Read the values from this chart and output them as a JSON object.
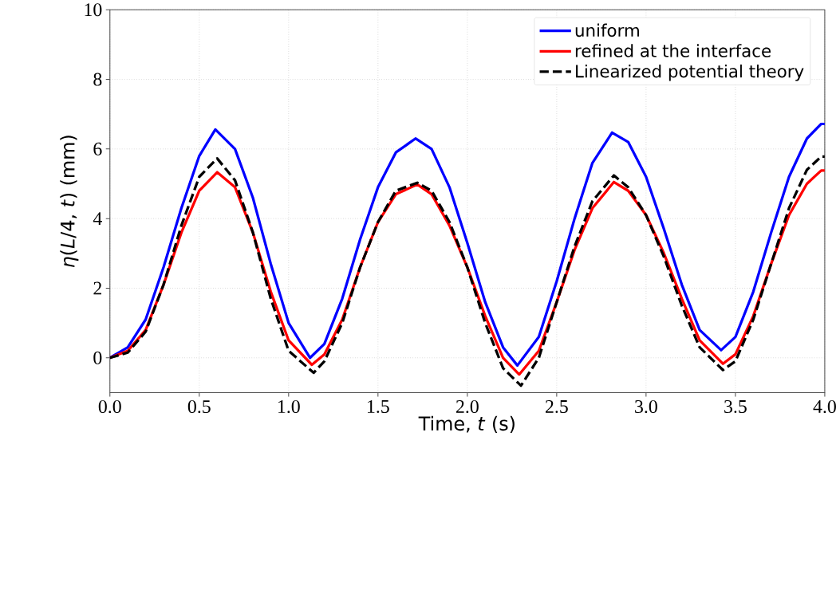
{
  "chart_data": {
    "type": "line",
    "xlabel": "Time, *t* (s)",
    "ylabel": "*η*(*L*/4, *t*) (mm)",
    "xlim": [
      0,
      4
    ],
    "ylim": [
      -1,
      10
    ],
    "xticks": [
      {
        "value": 0,
        "label": "0.0"
      },
      {
        "value": 0.5,
        "label": "0.5"
      },
      {
        "value": 1,
        "label": "1.0"
      },
      {
        "value": 1.5,
        "label": "1.5"
      },
      {
        "value": 2,
        "label": "2.0"
      },
      {
        "value": 2.5,
        "label": "2.5"
      },
      {
        "value": 3,
        "label": "3.0"
      },
      {
        "value": 3.5,
        "label": "3.5"
      },
      {
        "value": 4,
        "label": "4.0"
      }
    ],
    "yticks": [
      0,
      2,
      4,
      6,
      8,
      10
    ],
    "grid": true,
    "legend": "top right",
    "series": [
      {
        "name": "uniform",
        "color": "#0000ff",
        "line_style": "solid",
        "x": [
          0,
          0.1,
          0.2,
          0.3,
          0.4,
          0.5,
          0.59,
          0.7,
          0.8,
          0.9,
          1.0,
          1.12,
          1.2,
          1.3,
          1.4,
          1.5,
          1.6,
          1.71,
          1.8,
          1.9,
          2.0,
          2.1,
          2.2,
          2.28,
          2.4,
          2.5,
          2.6,
          2.7,
          2.81,
          2.9,
          3.0,
          3.1,
          3.2,
          3.3,
          3.42,
          3.5,
          3.6,
          3.7,
          3.8,
          3.9,
          3.98,
          4.0
        ],
        "values": [
          0,
          0.3,
          1.1,
          2.6,
          4.3,
          5.8,
          6.56,
          6.0,
          4.6,
          2.7,
          1.0,
          0.0,
          0.4,
          1.7,
          3.4,
          4.9,
          5.9,
          6.3,
          6.0,
          4.9,
          3.3,
          1.6,
          0.3,
          -0.22,
          0.6,
          2.2,
          4.0,
          5.6,
          6.47,
          6.2,
          5.2,
          3.7,
          2.1,
          0.8,
          0.22,
          0.6,
          1.9,
          3.6,
          5.2,
          6.3,
          6.72,
          6.72
        ]
      },
      {
        "name": "refined at the interface",
        "color": "#ff0000",
        "line_style": "solid",
        "x": [
          0,
          0.1,
          0.2,
          0.3,
          0.4,
          0.5,
          0.6,
          0.7,
          0.8,
          0.9,
          1.0,
          1.13,
          1.2,
          1.3,
          1.4,
          1.5,
          1.6,
          1.72,
          1.8,
          1.9,
          2.0,
          2.1,
          2.2,
          2.29,
          2.4,
          2.5,
          2.6,
          2.7,
          2.82,
          2.9,
          3.0,
          3.1,
          3.2,
          3.3,
          3.43,
          3.5,
          3.6,
          3.7,
          3.8,
          3.9,
          3.98,
          4.0
        ],
        "values": [
          0,
          0.2,
          0.8,
          2.1,
          3.6,
          4.8,
          5.33,
          4.9,
          3.6,
          1.9,
          0.5,
          -0.2,
          0.1,
          1.1,
          2.6,
          3.9,
          4.7,
          4.98,
          4.7,
          3.8,
          2.6,
          1.2,
          0.0,
          -0.48,
          0.2,
          1.6,
          3.1,
          4.3,
          5.05,
          4.8,
          4.1,
          3.0,
          1.7,
          0.5,
          -0.17,
          0.1,
          1.2,
          2.7,
          4.1,
          5.0,
          5.38,
          5.38
        ]
      },
      {
        "name": "Linearized potential theory",
        "color": "#000000",
        "line_style": "dashed",
        "x": [
          0,
          0.1,
          0.2,
          0.3,
          0.4,
          0.5,
          0.6,
          0.7,
          0.8,
          0.9,
          1.0,
          1.14,
          1.2,
          1.3,
          1.4,
          1.5,
          1.6,
          1.72,
          1.8,
          1.9,
          2.0,
          2.1,
          2.2,
          2.3,
          2.4,
          2.5,
          2.6,
          2.7,
          2.82,
          2.9,
          3.0,
          3.1,
          3.2,
          3.3,
          3.43,
          3.5,
          3.6,
          3.7,
          3.8,
          3.9,
          3.98,
          4.0
        ],
        "values": [
          0,
          0.15,
          0.75,
          2.1,
          3.8,
          5.2,
          5.73,
          5.1,
          3.6,
          1.7,
          0.2,
          -0.43,
          -0.1,
          1.0,
          2.6,
          3.9,
          4.8,
          5.03,
          4.8,
          3.9,
          2.6,
          1.0,
          -0.3,
          -0.8,
          0.0,
          1.6,
          3.2,
          4.5,
          5.24,
          4.9,
          4.1,
          2.9,
          1.5,
          0.3,
          -0.35,
          -0.1,
          1.1,
          2.7,
          4.3,
          5.4,
          5.78,
          5.78
        ]
      }
    ]
  }
}
